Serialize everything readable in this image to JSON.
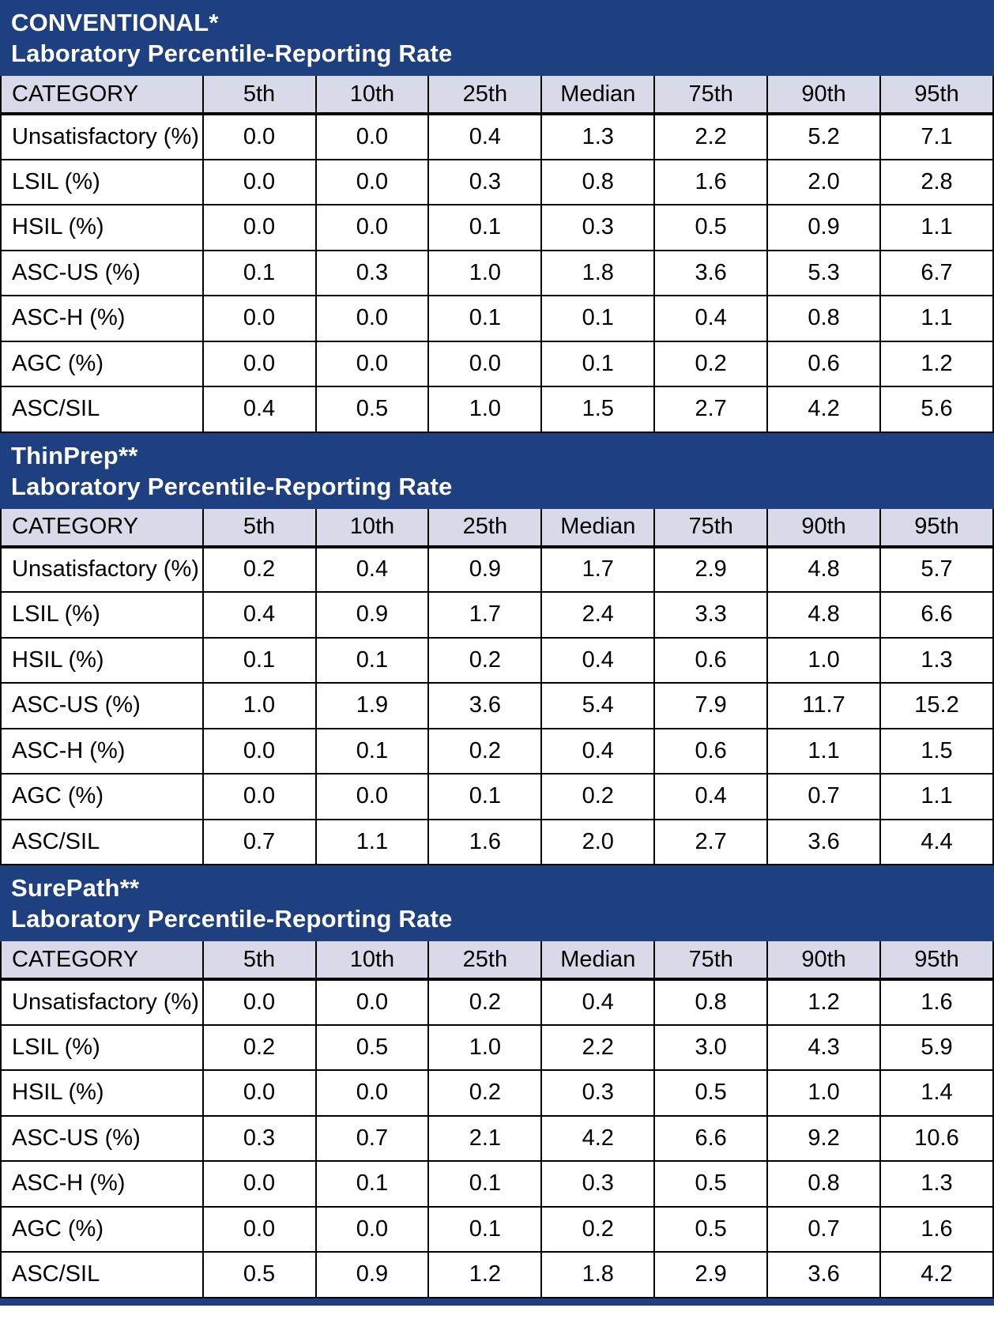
{
  "colors": {
    "banner_background": "#1e3f80",
    "column_header_background": "#d8dae9",
    "grid_border": "#000000",
    "banner_text": "#ffffff"
  },
  "columns": [
    "CATEGORY",
    "5th",
    "10th",
    "25th",
    "Median",
    "75th",
    "90th",
    "95th"
  ],
  "sections": [
    {
      "title": "CONVENTIONAL*",
      "subtitle": "Laboratory Percentile-Reporting Rate",
      "rows": [
        {
          "category": "Unsatisfactory (%)",
          "values": [
            "0.0",
            "0.0",
            "0.4",
            "1.3",
            "2.2",
            "5.2",
            "7.1"
          ]
        },
        {
          "category": "LSIL (%)",
          "values": [
            "0.0",
            "0.0",
            "0.3",
            "0.8",
            "1.6",
            "2.0",
            "2.8"
          ]
        },
        {
          "category": "HSIL (%)",
          "values": [
            "0.0",
            "0.0",
            "0.1",
            "0.3",
            "0.5",
            "0.9",
            "1.1"
          ]
        },
        {
          "category": "ASC-US (%)",
          "values": [
            "0.1",
            "0.3",
            "1.0",
            "1.8",
            "3.6",
            "5.3",
            "6.7"
          ]
        },
        {
          "category": "ASC-H (%)",
          "values": [
            "0.0",
            "0.0",
            "0.1",
            "0.1",
            "0.4",
            "0.8",
            "1.1"
          ]
        },
        {
          "category": "AGC (%)",
          "values": [
            "0.0",
            "0.0",
            "0.0",
            "0.1",
            "0.2",
            "0.6",
            "1.2"
          ]
        },
        {
          "category": "ASC/SIL",
          "values": [
            "0.4",
            "0.5",
            "1.0",
            "1.5",
            "2.7",
            "4.2",
            "5.6"
          ]
        }
      ]
    },
    {
      "title": "ThinPrep**",
      "subtitle": "Laboratory Percentile-Reporting Rate",
      "rows": [
        {
          "category": "Unsatisfactory (%)",
          "values": [
            "0.2",
            "0.4",
            "0.9",
            "1.7",
            "2.9",
            "4.8",
            "5.7"
          ]
        },
        {
          "category": "LSIL (%)",
          "values": [
            "0.4",
            "0.9",
            "1.7",
            "2.4",
            "3.3",
            "4.8",
            "6.6"
          ]
        },
        {
          "category": "HSIL (%)",
          "values": [
            "0.1",
            "0.1",
            "0.2",
            "0.4",
            "0.6",
            "1.0",
            "1.3"
          ]
        },
        {
          "category": "ASC-US (%)",
          "values": [
            "1.0",
            "1.9",
            "3.6",
            "5.4",
            "7.9",
            "11.7",
            "15.2"
          ]
        },
        {
          "category": "ASC-H (%)",
          "values": [
            "0.0",
            "0.1",
            "0.2",
            "0.4",
            "0.6",
            "1.1",
            "1.5"
          ]
        },
        {
          "category": "AGC (%)",
          "values": [
            "0.0",
            "0.0",
            "0.1",
            "0.2",
            "0.4",
            "0.7",
            "1.1"
          ]
        },
        {
          "category": "ASC/SIL",
          "values": [
            "0.7",
            "1.1",
            "1.6",
            "2.0",
            "2.7",
            "3.6",
            "4.4"
          ]
        }
      ]
    },
    {
      "title": "SurePath**",
      "subtitle": "Laboratory Percentile-Reporting Rate",
      "rows": [
        {
          "category": "Unsatisfactory (%)",
          "values": [
            "0.0",
            "0.0",
            "0.2",
            "0.4",
            "0.8",
            "1.2",
            "1.6"
          ]
        },
        {
          "category": "LSIL (%)",
          "values": [
            "0.2",
            "0.5",
            "1.0",
            "2.2",
            "3.0",
            "4.3",
            "5.9"
          ]
        },
        {
          "category": "HSIL (%)",
          "values": [
            "0.0",
            "0.0",
            "0.2",
            "0.3",
            "0.5",
            "1.0",
            "1.4"
          ]
        },
        {
          "category": "ASC-US (%)",
          "values": [
            "0.3",
            "0.7",
            "2.1",
            "4.2",
            "6.6",
            "9.2",
            "10.6"
          ]
        },
        {
          "category": "ASC-H (%)",
          "values": [
            "0.0",
            "0.1",
            "0.1",
            "0.3",
            "0.5",
            "0.8",
            "1.3"
          ]
        },
        {
          "category": "AGC (%)",
          "values": [
            "0.0",
            "0.0",
            "0.1",
            "0.2",
            "0.5",
            "0.7",
            "1.6"
          ]
        },
        {
          "category": "ASC/SIL",
          "values": [
            "0.5",
            "0.9",
            "1.2",
            "1.8",
            "2.9",
            "3.6",
            "4.2"
          ]
        }
      ]
    }
  ]
}
